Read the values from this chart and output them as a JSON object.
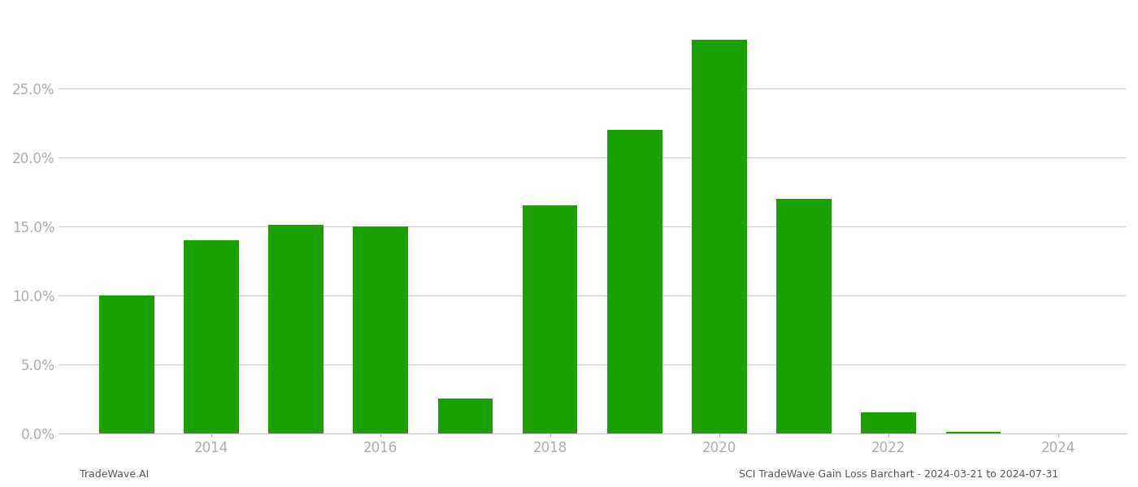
{
  "years": [
    2013,
    2014,
    2015,
    2016,
    2017,
    2018,
    2019,
    2020,
    2021,
    2022,
    2023
  ],
  "values": [
    0.1,
    0.14,
    0.151,
    0.15,
    0.025,
    0.165,
    0.22,
    0.285,
    0.17,
    0.015,
    0.001
  ],
  "bar_color": "#1aA000",
  "background_color": "#ffffff",
  "grid_color": "#cccccc",
  "ylim": [
    0,
    0.305
  ],
  "yticks": [
    0.0,
    0.05,
    0.1,
    0.15,
    0.2,
    0.25
  ],
  "xtick_years": [
    2014,
    2016,
    2018,
    2020,
    2022,
    2024
  ],
  "xlim_left": 2012.2,
  "xlim_right": 2024.8,
  "footer_left": "TradeWave.AI",
  "footer_right": "SCI TradeWave Gain Loss Barchart - 2024-03-21 to 2024-07-31",
  "bar_width": 0.65,
  "axis_label_color": "#aaaaaa",
  "tick_label_fontsize": 12,
  "footer_fontsize": 9
}
